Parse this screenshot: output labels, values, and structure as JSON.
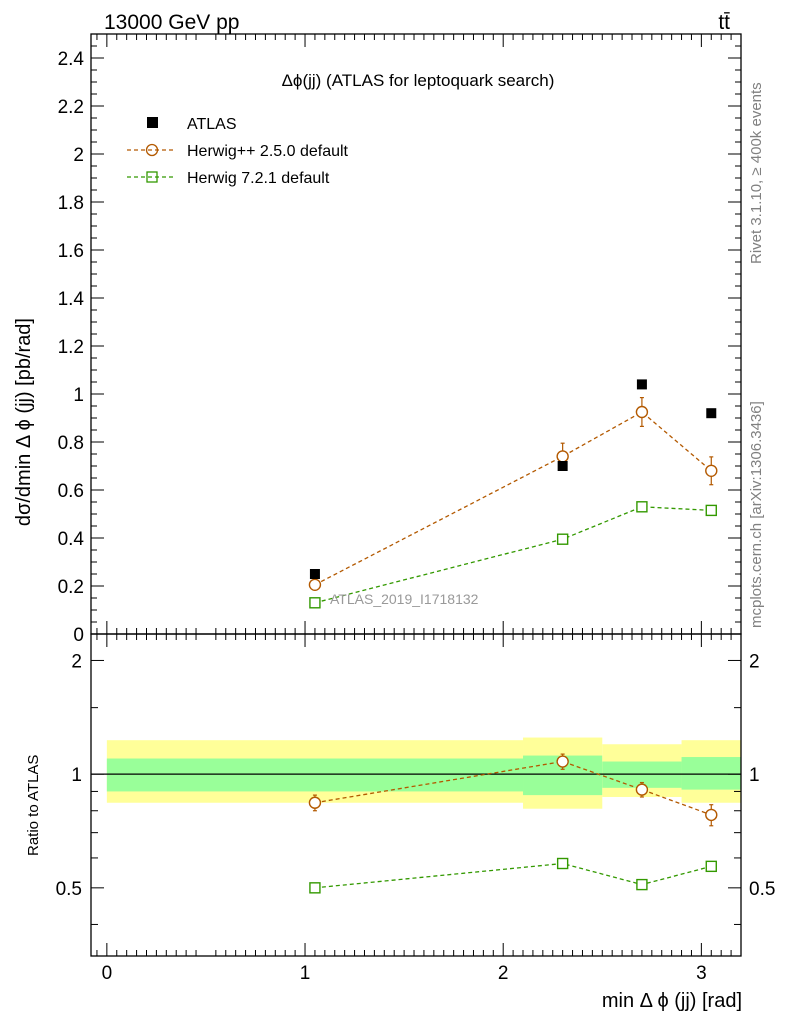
{
  "header": {
    "left": "13000 GeV pp",
    "right": "tt̄"
  },
  "side": {
    "rivet": "Rivet 3.1.10, ≥ 400k events",
    "mcplots": "mcplots.cern.ch [arXiv:1306.3436]"
  },
  "chart_data": {
    "type": "scatter",
    "title": "Δϕ(jj) (ATLAS for leptoquark search)",
    "analysis_id": "ATLAS_2019_I1718132",
    "xlabel": "min Δ ϕ (jj) [rad]",
    "ylabel": "dσ/dmin Δ ϕ (jj) [pb/rad]",
    "ratio_ylabel": "Ratio to ATLAS",
    "xlim": [
      -0.08,
      3.2
    ],
    "ylim": [
      0,
      2.5
    ],
    "ratio_ylim": [
      0.33,
      2.35
    ],
    "ratio_log": true,
    "x_ticks": [
      "0",
      "1",
      "2",
      "3"
    ],
    "x_tick_values": [
      0,
      1,
      2,
      3
    ],
    "y_ticks": [
      "0",
      "0.2",
      "0.4",
      "0.6",
      "0.8",
      "1",
      "1.2",
      "1.4",
      "1.6",
      "1.8",
      "2",
      "2.2",
      "2.4"
    ],
    "y_tick_values": [
      0,
      0.2,
      0.4,
      0.6,
      0.8,
      1.0,
      1.2,
      1.4,
      1.6,
      1.8,
      2.0,
      2.2,
      2.4
    ],
    "ratio_ticks": [
      "0.5",
      "1",
      "2"
    ],
    "ratio_tick_values": [
      0.5,
      1,
      2
    ],
    "legend_position": "top-left",
    "bins": [
      {
        "lo": 0.0,
        "hi": 2.1
      },
      {
        "lo": 2.1,
        "hi": 2.5
      },
      {
        "lo": 2.5,
        "hi": 2.9
      },
      {
        "lo": 2.9,
        "hi": 3.2
      }
    ],
    "data": {
      "name": "ATLAS",
      "color": "#000000",
      "x": [
        1.05,
        2.3,
        2.7,
        3.05
      ],
      "y": [
        0.25,
        0.7,
        1.04,
        0.92
      ],
      "band_stat": [
        [
          0.9,
          1.1
        ],
        [
          0.88,
          1.12
        ],
        [
          0.92,
          1.08
        ],
        [
          0.91,
          1.11
        ]
      ],
      "band_total": [
        [
          0.84,
          1.23
        ],
        [
          0.81,
          1.25
        ],
        [
          0.87,
          1.2
        ],
        [
          0.84,
          1.23
        ]
      ]
    },
    "series": [
      {
        "name": "Herwig++ 2.5.0 default",
        "color": "#b35900",
        "marker": "circle",
        "x": [
          1.05,
          2.3,
          2.7,
          3.05
        ],
        "y": [
          0.205,
          0.74,
          0.925,
          0.68
        ],
        "yerr": [
          0.012,
          0.055,
          0.06,
          0.058
        ],
        "ratio": [
          0.84,
          1.08,
          0.91,
          0.78
        ],
        "ratio_err": [
          0.04,
          0.05,
          0.04,
          0.05
        ]
      },
      {
        "name": "Herwig 7.2.1 default",
        "color": "#339900",
        "marker": "square",
        "x": [
          1.05,
          2.3,
          2.7,
          3.05
        ],
        "y": [
          0.13,
          0.395,
          0.53,
          0.515
        ],
        "yerr": [
          0.006,
          0.01,
          0.012,
          0.012
        ],
        "ratio": [
          0.5,
          0.58,
          0.51,
          0.57
        ],
        "ratio_err": [
          0.01,
          0.01,
          0.01,
          0.01
        ]
      }
    ]
  }
}
